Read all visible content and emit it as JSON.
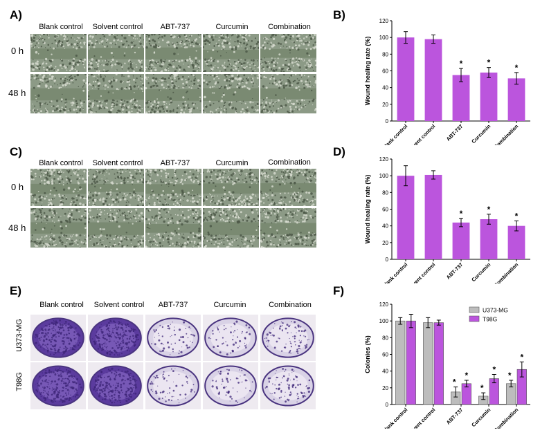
{
  "panels": {
    "A": "A)",
    "B": "B)",
    "C": "C)",
    "D": "D)",
    "E": "E)",
    "F": "F)"
  },
  "wound_grid_A": {
    "columns": [
      "Blank control",
      "Solvent control",
      "ABT-737",
      "Curcumin",
      "Combination"
    ],
    "rows": [
      "0 h",
      "48 h"
    ]
  },
  "wound_grid_C": {
    "columns": [
      "Blank control",
      "Solvent control",
      "ABT-737",
      "Curcumin",
      "Combination"
    ],
    "rows": [
      "0 h",
      "48 h"
    ]
  },
  "colony_grid_E": {
    "columns": [
      "Blank control",
      "Solvent control",
      "ABT-737",
      "Curcumin",
      "Combination"
    ],
    "rows": [
      "U373-MG",
      "T98G"
    ]
  },
  "colors": {
    "bar_purple": "#bb55dd",
    "bar_gray": "#bdbdbd",
    "wound_bg": "#8c9a86",
    "crystal_violet": "#6a45a8"
  },
  "chart_data": [
    {
      "type": "bar",
      "panel": "B",
      "categories": [
        "Blank control",
        "Solvent control",
        "ABT-737",
        "Curcumin",
        "Combination"
      ],
      "series": [
        {
          "values": [
            100,
            98,
            55,
            58,
            51
          ],
          "errors": [
            7,
            5,
            8,
            6,
            7
          ]
        }
      ],
      "significance": [
        "",
        "",
        "*",
        "*",
        "*"
      ],
      "ylabel": "Wound healing rate (%)",
      "ylim": [
        0,
        120
      ],
      "yticks": [
        0,
        20,
        40,
        60,
        80,
        100,
        120
      ]
    },
    {
      "type": "bar",
      "panel": "D",
      "categories": [
        "Blank control",
        "Solvent control",
        "ABT-737",
        "Curcumin",
        "Combination"
      ],
      "series": [
        {
          "values": [
            100,
            101,
            44,
            48,
            40
          ],
          "errors": [
            12,
            5,
            5,
            6,
            6
          ]
        }
      ],
      "significance": [
        "",
        "",
        "*",
        "*",
        "*"
      ],
      "ylabel": "Wound healing rate (%)",
      "ylim": [
        0,
        120
      ],
      "yticks": [
        0,
        20,
        40,
        60,
        80,
        100,
        120
      ]
    },
    {
      "type": "bar",
      "panel": "F",
      "categories": [
        "Blank control",
        "Solvent control",
        "ABT-737",
        "Curcumin",
        "Combination"
      ],
      "series": [
        {
          "name": "U373-MG",
          "values": [
            100,
            98,
            15,
            10,
            25
          ],
          "errors": [
            4,
            6,
            6,
            4,
            4
          ],
          "significance": [
            "",
            "",
            "*",
            "*",
            "*"
          ]
        },
        {
          "name": "T98G",
          "values": [
            100,
            98,
            25,
            31,
            42
          ],
          "errors": [
            8,
            3,
            4,
            5,
            9
          ],
          "significance": [
            "",
            "",
            "*",
            "*",
            "*"
          ]
        }
      ],
      "ylabel": "Colonies (%)",
      "ylim": [
        0,
        120
      ],
      "yticks": [
        0,
        20,
        40,
        60,
        80,
        100,
        120
      ],
      "legend": "top-right"
    }
  ]
}
